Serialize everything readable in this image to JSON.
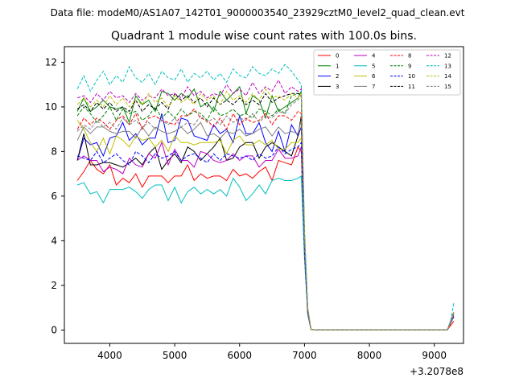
{
  "chart_data": {
    "type": "line",
    "suptitle": "Data file: modeM0/AS1A07_142T01_9000003540_23929cztM0_level2_quad_clean.evt",
    "title": "Quadrant 1 module wise count rates with 100.0s bins.",
    "xlabel": "",
    "ylabel": "",
    "x_offset_label": "+3.2078e8",
    "x_offset_value": 320780000,
    "xlim": [
      3300,
      9450
    ],
    "ylim": [
      -0.6,
      12.7
    ],
    "xticks": [
      4000,
      5000,
      6000,
      7000,
      8000,
      9000
    ],
    "yticks": [
      0,
      2,
      4,
      6,
      8,
      10,
      12
    ],
    "grid": false,
    "legend": {
      "placement": "top-right",
      "columns": 4
    },
    "x": [
      3500,
      3600,
      3700,
      3800,
      3900,
      4000,
      4100,
      4200,
      4300,
      4400,
      4500,
      4600,
      4700,
      4800,
      4900,
      5000,
      5100,
      5200,
      5300,
      5400,
      5500,
      5600,
      5700,
      5800,
      5900,
      6000,
      6100,
      6200,
      6300,
      6400,
      6500,
      6600,
      6700,
      6800,
      6900,
      6950,
      7000,
      7050,
      7100,
      7200,
      9200,
      9250,
      9300
    ],
    "series": [
      {
        "name": "0",
        "color": "#ff0000",
        "dash": "solid",
        "values": [
          6.7,
          7.1,
          7.6,
          7.2,
          7.0,
          7.4,
          6.5,
          6.8,
          6.6,
          7.0,
          6.4,
          6.9,
          6.9,
          6.9,
          6.6,
          6.9,
          6.9,
          7.4,
          6.7,
          7.0,
          6.8,
          6.9,
          6.9,
          6.7,
          7.2,
          6.9,
          7.0,
          6.8,
          7.1,
          7.3,
          6.7,
          7.6,
          7.5,
          7.4,
          8.2,
          8.0,
          3.5,
          0.7,
          0.02,
          0.0,
          0.0,
          0.2,
          0.4
        ]
      },
      {
        "name": "1",
        "color": "#008000",
        "dash": "solid",
        "values": [
          9.8,
          10.4,
          9.8,
          10.0,
          10.3,
          10.0,
          9.9,
          10.0,
          9.3,
          10.5,
          10.1,
          10.3,
          9.8,
          10.7,
          10.6,
          10.3,
          10.6,
          10.4,
          10.8,
          10.0,
          10.2,
          9.8,
          10.7,
          10.3,
          10.6,
          10.9,
          9.7,
          10.5,
          10.3,
          9.5,
          10.5,
          9.8,
          10.0,
          10.2,
          10.4,
          10.7,
          4.0,
          0.9,
          0.02,
          0.0,
          0.0,
          0.3,
          0.7
        ]
      },
      {
        "name": "2",
        "color": "#0000ff",
        "dash": "solid",
        "values": [
          7.6,
          8.6,
          8.3,
          8.4,
          7.8,
          8.6,
          8.7,
          9.3,
          8.5,
          8.8,
          8.3,
          8.6,
          8.6,
          9.7,
          8.4,
          8.5,
          9.5,
          9.4,
          8.7,
          8.6,
          8.5,
          9.2,
          8.8,
          9.0,
          8.4,
          9.6,
          8.8,
          8.8,
          9.3,
          8.4,
          8.0,
          8.9,
          8.0,
          9.2,
          8.7,
          9.1,
          3.8,
          0.8,
          0.02,
          0.0,
          0.0,
          0.3,
          0.8
        ]
      },
      {
        "name": "3",
        "color": "#000000",
        "dash": "solid",
        "values": [
          7.6,
          8.8,
          7.4,
          7.4,
          7.5,
          7.5,
          7.4,
          7.3,
          7.5,
          7.7,
          7.4,
          7.9,
          8.2,
          7.2,
          7.6,
          7.9,
          7.5,
          8.2,
          8.0,
          7.6,
          7.9,
          8.2,
          8.6,
          7.6,
          7.7,
          8.2,
          8.4,
          8.4,
          7.7,
          8.2,
          8.4,
          8.2,
          8.0,
          7.8,
          8.7,
          9.6,
          3.6,
          0.8,
          0.02,
          0.0,
          0.0,
          0.3,
          0.6
        ]
      },
      {
        "name": "4",
        "color": "#bf00bf",
        "dash": "solid",
        "values": [
          7.6,
          7.8,
          7.6,
          7.6,
          7.1,
          7.3,
          7.2,
          7.0,
          7.7,
          7.4,
          7.3,
          7.9,
          7.7,
          8.4,
          7.4,
          8.1,
          7.6,
          7.6,
          7.3,
          8.0,
          7.9,
          7.6,
          7.5,
          7.6,
          7.9,
          7.6,
          7.8,
          7.8,
          7.3,
          7.6,
          7.6,
          8.1,
          7.7,
          7.7,
          7.8,
          8.2,
          3.4,
          0.8,
          0.02,
          0.0,
          0.0,
          0.3,
          0.6
        ]
      },
      {
        "name": "5",
        "color": "#00bfbf",
        "dash": "solid",
        "values": [
          6.5,
          6.6,
          6.1,
          6.2,
          5.7,
          6.3,
          6.3,
          6.3,
          6.4,
          6.2,
          5.9,
          6.3,
          6.5,
          6.5,
          5.8,
          6.4,
          5.7,
          6.2,
          6.4,
          6.1,
          6.3,
          6.1,
          6.3,
          6.0,
          6.8,
          6.4,
          5.8,
          6.1,
          6.5,
          6.1,
          6.7,
          6.8,
          6.7,
          6.7,
          6.8,
          6.9,
          3.2,
          0.7,
          0.02,
          0.0,
          0.0,
          0.3,
          0.6
        ]
      },
      {
        "name": "6",
        "color": "#bfbf00",
        "dash": "solid",
        "values": [
          9.4,
          9.0,
          8.4,
          8.0,
          8.6,
          7.9,
          8.7,
          8.5,
          8.2,
          8.7,
          8.5,
          8.6,
          8.2,
          8.5,
          8.0,
          8.7,
          8.4,
          8.4,
          8.3,
          8.4,
          8.4,
          8.4,
          8.5,
          7.9,
          8.5,
          8.7,
          8.3,
          8.3,
          8.5,
          8.3,
          8.5,
          8.1,
          8.1,
          8.4,
          8.4,
          8.6,
          3.7,
          0.8,
          0.02,
          0.0,
          0.0,
          0.3,
          0.7
        ]
      },
      {
        "name": "7",
        "color": "#808080",
        "dash": "solid",
        "values": [
          8.5,
          9.1,
          8.8,
          9.1,
          9.1,
          8.9,
          8.8,
          8.9,
          8.9,
          8.6,
          9.1,
          8.7,
          9.1,
          8.9,
          8.8,
          8.9,
          9.1,
          8.8,
          9.0,
          9.3,
          8.7,
          8.8,
          8.6,
          8.9,
          8.8,
          9.0,
          8.7,
          8.8,
          9.0,
          9.1,
          8.7,
          9.1,
          8.8,
          8.9,
          8.8,
          9.4,
          3.9,
          0.8,
          0.02,
          0.0,
          0.0,
          0.3,
          0.6
        ]
      },
      {
        "name": "8",
        "color": "#ff0000",
        "dash": "dashed",
        "values": [
          9.0,
          9.5,
          9.2,
          9.5,
          9.3,
          9.0,
          9.4,
          9.6,
          9.2,
          9.7,
          9.0,
          9.5,
          9.6,
          9.4,
          9.3,
          9.2,
          9.6,
          9.6,
          9.9,
          9.5,
          9.4,
          9.1,
          9.5,
          9.0,
          9.7,
          9.2,
          9.5,
          9.3,
          9.4,
          9.7,
          9.2,
          9.6,
          9.6,
          9.4,
          9.8,
          9.7,
          4.0,
          0.9,
          0.02,
          0.0,
          0.0,
          0.3,
          0.7
        ]
      },
      {
        "name": "9",
        "color": "#008000",
        "dash": "dashed",
        "values": [
          9.6,
          10.0,
          9.7,
          9.3,
          9.6,
          10.0,
          9.4,
          9.9,
          9.7,
          9.8,
          9.4,
          9.6,
          10.0,
          9.5,
          9.8,
          9.5,
          9.9,
          9.6,
          9.8,
          9.7,
          9.4,
          10.0,
          9.6,
          9.7,
          9.9,
          9.6,
          9.7,
          9.5,
          9.9,
          9.8,
          9.6,
          9.9,
          9.7,
          10.5,
          10.6,
          10.6,
          4.2,
          0.9,
          0.02,
          0.0,
          0.0,
          0.3,
          0.7
        ]
      },
      {
        "name": "10",
        "color": "#0000ff",
        "dash": "dashed",
        "values": [
          7.8,
          7.7,
          7.6,
          8.0,
          7.5,
          7.7,
          7.9,
          7.6,
          7.4,
          8.0,
          7.8,
          7.5,
          7.9,
          7.7,
          7.8,
          8.0,
          7.6,
          7.8,
          7.9,
          7.7,
          7.5,
          7.9,
          7.6,
          7.9,
          7.8,
          7.7,
          7.8,
          7.6,
          7.9,
          7.7,
          7.8,
          8.2,
          7.9,
          8.1,
          8.2,
          8.4,
          3.5,
          0.8,
          0.02,
          0.0,
          0.0,
          0.3,
          0.6
        ]
      },
      {
        "name": "11",
        "color": "#000000",
        "dash": "dashed",
        "values": [
          9.9,
          10.1,
          9.8,
          10.2,
          9.9,
          10.2,
          9.8,
          10.0,
          9.8,
          10.3,
          9.8,
          10.1,
          9.9,
          10.2,
          9.9,
          10.6,
          10.3,
          10.5,
          10.2,
          10.4,
          10.0,
          10.4,
          10.1,
          10.3,
          10.1,
          10.4,
          10.1,
          10.3,
          10.1,
          10.6,
          10.2,
          10.4,
          10.5,
          10.6,
          10.6,
          10.5,
          4.2,
          0.9,
          0.02,
          0.0,
          0.0,
          0.3,
          0.7
        ]
      },
      {
        "name": "12",
        "color": "#bf00bf",
        "dash": "dashed",
        "values": [
          10.4,
          10.5,
          10.2,
          10.6,
          10.3,
          10.7,
          10.4,
          10.5,
          10.2,
          10.6,
          10.3,
          10.5,
          10.4,
          10.8,
          10.5,
          10.6,
          10.4,
          10.9,
          10.5,
          10.7,
          10.4,
          10.6,
          10.5,
          11.0,
          10.6,
          10.8,
          10.5,
          11.1,
          10.6,
          10.9,
          10.7,
          11.2,
          10.6,
          10.9,
          10.7,
          10.8,
          4.4,
          1.0,
          0.02,
          0.0,
          0.0,
          0.4,
          0.8
        ]
      },
      {
        "name": "13",
        "color": "#00bfbf",
        "dash": "dashed",
        "values": [
          10.8,
          11.4,
          10.7,
          11.2,
          11.6,
          11.0,
          11.4,
          11.1,
          11.8,
          11.3,
          11.1,
          11.5,
          11.0,
          11.6,
          11.3,
          11.2,
          11.7,
          11.1,
          11.5,
          11.3,
          11.6,
          11.2,
          11.5,
          11.1,
          11.7,
          11.4,
          11.3,
          11.8,
          11.5,
          11.4,
          11.7,
          11.5,
          11.9,
          11.6,
          11.2,
          11.0,
          4.6,
          1.0,
          0.02,
          0.0,
          0.0,
          0.4,
          1.2
        ]
      },
      {
        "name": "14",
        "color": "#bfbf00",
        "dash": "dashed",
        "values": [
          10.1,
          10.4,
          10.0,
          10.3,
          10.0,
          10.5,
          10.1,
          10.4,
          10.0,
          10.3,
          10.1,
          10.6,
          10.2,
          10.4,
          10.0,
          10.5,
          10.2,
          10.4,
          10.1,
          10.6,
          10.3,
          10.5,
          10.1,
          10.7,
          10.3,
          10.5,
          10.2,
          10.6,
          10.3,
          10.8,
          10.4,
          10.5,
          10.3,
          10.6,
          10.4,
          10.6,
          4.3,
          1.0,
          0.02,
          0.0,
          0.0,
          0.3,
          0.8
        ]
      },
      {
        "name": "15",
        "color": "#808080",
        "dash": "dashed",
        "values": [
          8.9,
          9.2,
          9.0,
          9.4,
          9.1,
          9.3,
          9.0,
          9.5,
          9.2,
          9.4,
          9.1,
          9.3,
          9.0,
          9.4,
          9.2,
          9.5,
          9.1,
          9.3,
          9.2,
          9.6,
          9.3,
          9.5,
          9.2,
          9.6,
          9.3,
          9.5,
          9.4,
          9.7,
          9.3,
          9.6,
          9.5,
          9.8,
          9.7,
          10.1,
          10.3,
          10.5,
          4.1,
          0.9,
          0.02,
          0.0,
          0.0,
          0.3,
          0.7
        ]
      }
    ]
  }
}
